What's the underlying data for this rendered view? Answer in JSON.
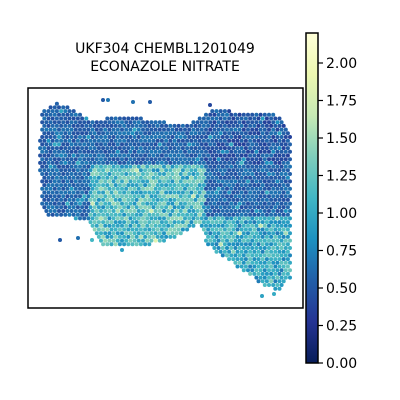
{
  "chart_data": {
    "type": "scatter",
    "title_lines": [
      "UKF304 CHEMBL1201049",
      "ECONAZOLE NITRATE"
    ],
    "xlabel": "",
    "ylabel": "",
    "grid": false,
    "colorbar": {
      "colormap": "YlGnBu",
      "range": [
        0.0,
        2.2
      ],
      "ticks": [
        0.0,
        0.25,
        0.5,
        0.75,
        1.0,
        1.25,
        1.5,
        1.75,
        2.0
      ],
      "tick_labels": [
        "0.00",
        "0.25",
        "0.50",
        "0.75",
        "1.00",
        "1.25",
        "1.50",
        "1.75",
        "2.00"
      ],
      "stops": [
        "#081d58",
        "#253494",
        "#225ea8",
        "#1d91c0",
        "#41b6c4",
        "#7fcdbb",
        "#c7e9b4",
        "#edf8b1",
        "#ffffd9"
      ]
    }
  }
}
